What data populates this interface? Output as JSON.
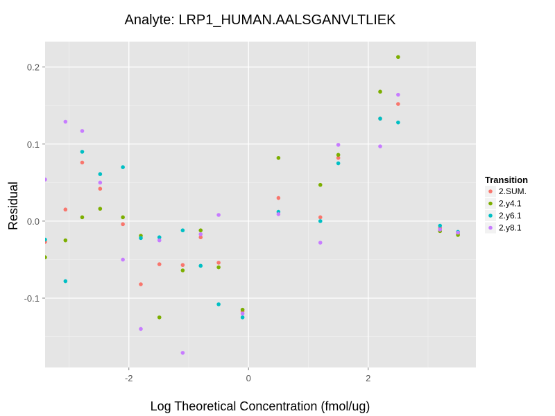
{
  "chart_data": {
    "type": "scatter",
    "title": "Analyte: LRP1_HUMAN.AALSGANVLTLIEK",
    "xlabel": "Log Theoretical Concentration (fmol/ug)",
    "ylabel": "Residual",
    "xlim": [
      -3.4,
      3.8
    ],
    "ylim": [
      -0.19,
      0.233
    ],
    "x_ticks": [
      -2,
      0,
      2
    ],
    "x_tick_labels": [
      "-2",
      "0",
      "2"
    ],
    "y_ticks": [
      -0.1,
      0.0,
      0.1,
      0.2
    ],
    "y_tick_labels": [
      "-0.1",
      "0.0",
      "0.1",
      "0.2"
    ],
    "grid": true,
    "legend": {
      "title": "Transition",
      "position": "right"
    },
    "series": [
      {
        "name": "2.SUM.",
        "color": "#F8766D",
        "points": [
          [
            -3.4,
            -0.027
          ],
          [
            -3.06,
            0.015
          ],
          [
            -2.78,
            0.076
          ],
          [
            -2.48,
            0.042
          ],
          [
            -2.1,
            -0.004
          ],
          [
            -1.8,
            -0.082
          ],
          [
            -1.49,
            -0.056
          ],
          [
            -1.1,
            -0.057
          ],
          [
            -0.8,
            -0.021
          ],
          [
            -0.5,
            -0.054
          ],
          [
            -0.1,
            -0.117
          ],
          [
            0.5,
            0.03
          ],
          [
            1.2,
            0.005
          ],
          [
            1.5,
            0.082
          ],
          [
            2.2,
            0.133
          ],
          [
            2.5,
            0.152
          ],
          [
            3.2,
            -0.009
          ],
          [
            3.5,
            -0.016
          ]
        ]
      },
      {
        "name": "2.y4.1",
        "color": "#7CAE00",
        "points": [
          [
            -3.4,
            -0.047
          ],
          [
            -3.06,
            -0.025
          ],
          [
            -2.78,
            0.005
          ],
          [
            -2.48,
            0.016
          ],
          [
            -2.1,
            0.005
          ],
          [
            -1.8,
            -0.019
          ],
          [
            -1.49,
            -0.125
          ],
          [
            -1.1,
            -0.064
          ],
          [
            -0.8,
            -0.012
          ],
          [
            -0.5,
            -0.06
          ],
          [
            -0.1,
            -0.115
          ],
          [
            0.5,
            0.082
          ],
          [
            1.2,
            0.047
          ],
          [
            1.5,
            0.086
          ],
          [
            2.2,
            0.168
          ],
          [
            2.5,
            0.213
          ],
          [
            3.2,
            -0.013
          ],
          [
            3.5,
            -0.018
          ]
        ]
      },
      {
        "name": "2.y6.1",
        "color": "#00BFC4",
        "points": [
          [
            -3.4,
            -0.024
          ],
          [
            -3.06,
            -0.078
          ],
          [
            -2.78,
            0.09
          ],
          [
            -2.48,
            0.061
          ],
          [
            -2.1,
            0.07
          ],
          [
            -1.8,
            -0.022
          ],
          [
            -1.49,
            -0.021
          ],
          [
            -1.1,
            -0.012
          ],
          [
            -0.8,
            -0.058
          ],
          [
            -0.5,
            -0.108
          ],
          [
            -0.1,
            -0.125
          ],
          [
            0.5,
            0.012
          ],
          [
            1.2,
            0.0
          ],
          [
            1.5,
            0.075
          ],
          [
            2.2,
            0.133
          ],
          [
            2.5,
            0.128
          ],
          [
            3.2,
            -0.006
          ],
          [
            3.5,
            -0.014
          ]
        ]
      },
      {
        "name": "2.y8.1",
        "color": "#C77CFF",
        "points": [
          [
            -3.4,
            0.054
          ],
          [
            -3.06,
            0.129
          ],
          [
            -2.78,
            0.117
          ],
          [
            -2.48,
            0.05
          ],
          [
            -2.1,
            -0.05
          ],
          [
            -1.8,
            -0.14
          ],
          [
            -1.49,
            -0.025
          ],
          [
            -1.1,
            -0.171
          ],
          [
            -0.8,
            -0.017
          ],
          [
            -0.5,
            0.008
          ],
          [
            -0.1,
            -0.12
          ],
          [
            0.5,
            0.009
          ],
          [
            1.2,
            -0.028
          ],
          [
            1.5,
            0.099
          ],
          [
            2.2,
            0.097
          ],
          [
            2.5,
            0.164
          ],
          [
            3.2,
            -0.011
          ],
          [
            3.5,
            -0.015
          ]
        ]
      }
    ]
  }
}
